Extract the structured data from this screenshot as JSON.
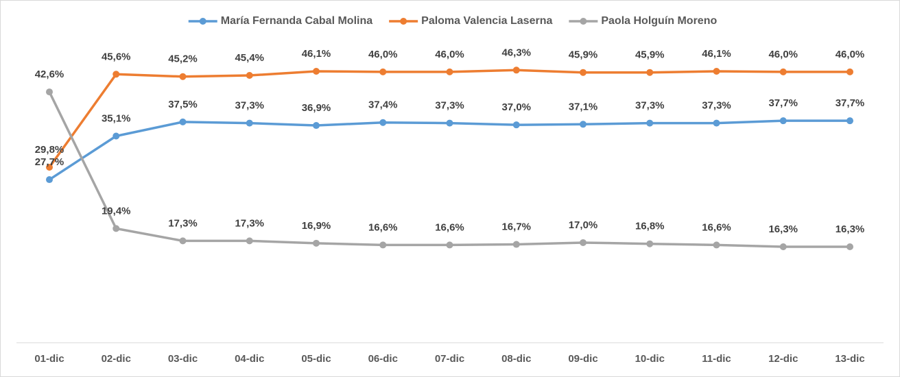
{
  "chart_data": {
    "type": "line",
    "categories": [
      "01-dic",
      "02-dic",
      "03-dic",
      "04-dic",
      "05-dic",
      "06-dic",
      "07-dic",
      "08-dic",
      "09-dic",
      "10-dic",
      "11-dic",
      "12-dic",
      "13-dic"
    ],
    "ylim": [
      0,
      50
    ],
    "legend": "top",
    "series": [
      {
        "name": "María Fernanda Cabal Molina",
        "color": "#5b9bd5",
        "values": [
          27.7,
          35.1,
          37.5,
          37.3,
          36.9,
          37.4,
          37.3,
          37.0,
          37.1,
          37.3,
          37.3,
          37.7,
          37.7
        ],
        "value_labels": [
          "27,7%",
          "35,1%",
          "37,5%",
          "37,3%",
          "36,9%",
          "37,4%",
          "37,3%",
          "37,0%",
          "37,1%",
          "37,3%",
          "37,3%",
          "37,7%",
          "37,7%"
        ]
      },
      {
        "name": "Paloma Valencia Laserna",
        "color": "#ed7d31",
        "values": [
          29.8,
          45.6,
          45.2,
          45.4,
          46.1,
          46.0,
          46.0,
          46.3,
          45.9,
          45.9,
          46.1,
          46.0,
          46.0
        ],
        "value_labels": [
          "29,8%",
          "45,6%",
          "45,2%",
          "45,4%",
          "46,1%",
          "46,0%",
          "46,0%",
          "46,3%",
          "45,9%",
          "45,9%",
          "46,1%",
          "46,0%",
          "46,0%"
        ]
      },
      {
        "name": "Paola Holguín Moreno",
        "color": "#a5a5a5",
        "values": [
          42.6,
          19.4,
          17.3,
          17.3,
          16.9,
          16.6,
          16.6,
          16.7,
          17.0,
          16.8,
          16.6,
          16.3,
          16.3
        ],
        "value_labels": [
          "42,6%",
          "19,4%",
          "17,3%",
          "17,3%",
          "16,9%",
          "16,6%",
          "16,6%",
          "16,7%",
          "17,0%",
          "16,8%",
          "16,6%",
          "16,3%",
          "16,3%"
        ]
      }
    ]
  }
}
